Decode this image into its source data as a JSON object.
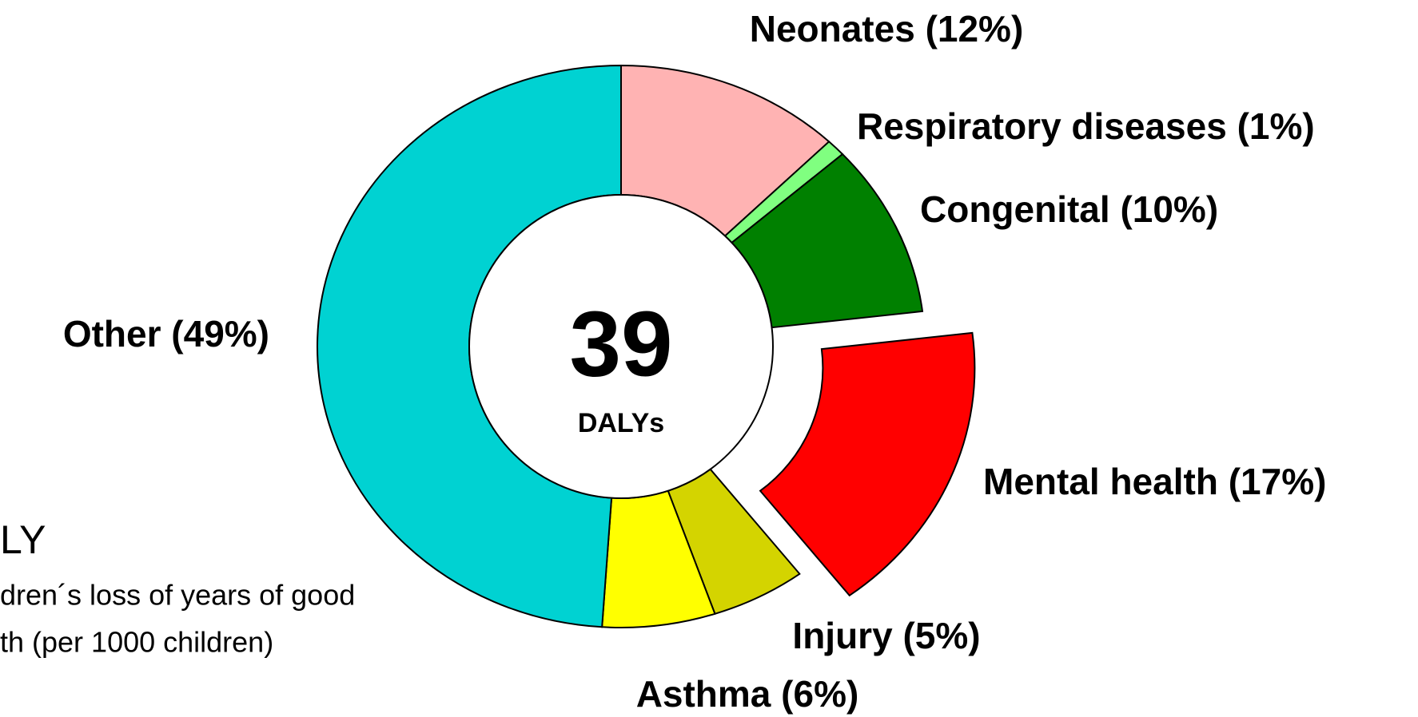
{
  "chart_data": {
    "type": "donut",
    "values": [
      12,
      1,
      10,
      17,
      5,
      6,
      49
    ],
    "value_labels": [
      "Neonates (12%)",
      "Respiratory diseases (1%)",
      "Congenital (10%)",
      "Mental health (17%)",
      "Injury (5%)",
      "Asthma (6%)",
      "Other (49%)"
    ],
    "colors": [
      "#ffb3b3",
      "#80ff80",
      "#008000",
      "#ff0000",
      "#d4d400",
      "#ffff00",
      "#00d2d2"
    ],
    "exploded": [
      false,
      false,
      false,
      true,
      false,
      false,
      false
    ],
    "center_value": "39",
    "center_label": "DALYs",
    "note": {
      "title": "LY",
      "lines": [
        "dren´s loss of years of good",
        "th (per 1000 children)"
      ]
    }
  }
}
